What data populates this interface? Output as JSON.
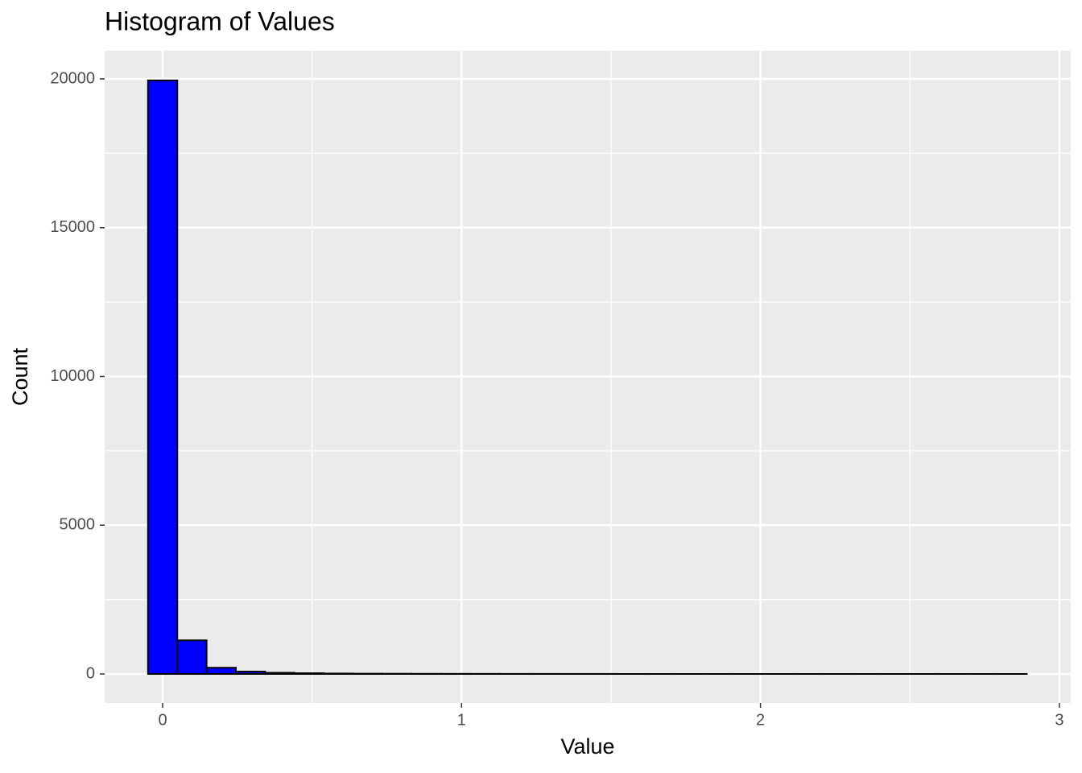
{
  "chart_data": {
    "type": "histogram",
    "title": "Histogram of Values",
    "x_label": "Value",
    "y_label": "Count",
    "bins": [
      -0.049,
      0.049,
      0.147,
      0.245,
      0.343,
      0.441,
      0.539,
      0.637,
      0.735,
      0.833,
      0.931,
      1.029,
      1.127,
      1.225,
      1.323,
      1.421,
      1.519,
      1.617,
      1.715,
      1.813,
      1.911,
      2.009,
      2.107,
      2.205,
      2.303,
      2.401,
      2.499,
      2.597,
      2.695,
      2.793,
      2.891
    ],
    "values": [
      19950,
      1130,
      210,
      80,
      40,
      25,
      15,
      10,
      8,
      6,
      5,
      4,
      3,
      3,
      2,
      2,
      1,
      1,
      1,
      1,
      1,
      1,
      1,
      1,
      1,
      1,
      1,
      1,
      1,
      1
    ],
    "color": "#0000ff",
    "edge_color": "#000000",
    "xlim": [
      -0.194,
      3.038
    ],
    "xticks": [
      0,
      1,
      2,
      3
    ],
    "ylim": [
      -974,
      20947
    ],
    "yticks": [
      0,
      5000,
      10000,
      15000,
      20000
    ],
    "grid": true,
    "minor_grid": true
  }
}
